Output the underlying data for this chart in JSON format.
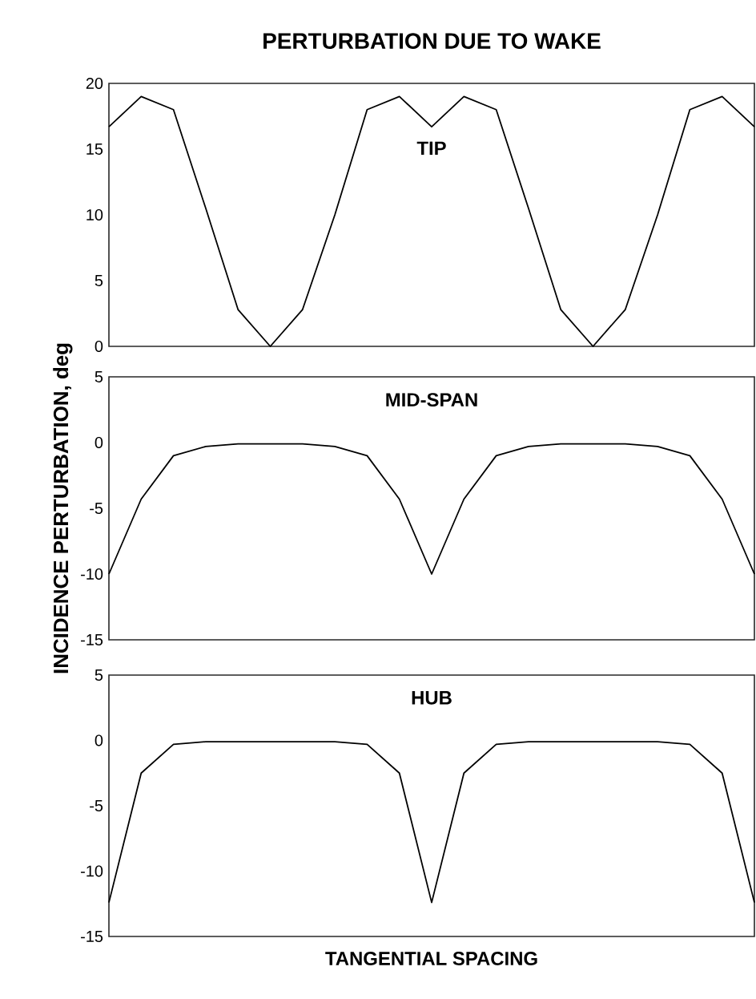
{
  "chart_data": [
    {
      "type": "line",
      "title": "PERTURBATION DUE TO WAKE",
      "annotations": [
        "TIP"
      ],
      "categories": [
        null,
        null,
        null,
        null,
        null,
        null,
        null,
        null,
        null,
        null,
        null,
        null,
        null,
        null,
        null,
        null,
        null,
        null,
        null,
        null,
        null
      ],
      "series": [
        {
          "color": "#000000",
          "values": [
            16.7,
            19,
            18,
            10.5,
            2.8,
            0,
            2.8,
            10,
            18,
            19,
            16.7,
            19,
            18,
            10.5,
            2.8,
            0,
            2.8,
            10,
            18,
            19,
            16.7
          ]
        }
      ],
      "ylim": [
        0,
        20
      ],
      "yticks": [
        {
          "value": 0,
          "label": "0"
        },
        {
          "value": 5,
          "label": "5"
        },
        {
          "value": 10,
          "label": "10"
        },
        {
          "value": 15,
          "label": "15"
        },
        {
          "value": 20,
          "label": "20"
        }
      ],
      "tick_labels": "y",
      "marker": "none",
      "line_style": "solid"
    },
    {
      "type": "line",
      "ylabel": "INCIDENCE PERTURBATION, deg",
      "annotations": [
        "MID-SPAN"
      ],
      "categories": [
        null,
        null,
        null,
        null,
        null,
        null,
        null,
        null,
        null,
        null,
        null,
        null,
        null,
        null,
        null,
        null,
        null,
        null,
        null,
        null,
        null
      ],
      "series": [
        {
          "color": "#000000",
          "values": [
            -10,
            -4.3,
            -1,
            -0.3,
            -0.1,
            -0.1,
            -0.1,
            -0.3,
            -1,
            -4.3,
            -10,
            -4.3,
            -1,
            -0.3,
            -0.1,
            -0.1,
            -0.1,
            -0.3,
            -1,
            -4.3,
            -10
          ]
        }
      ],
      "ylim": [
        -15,
        5
      ],
      "yticks": [
        {
          "value": -15,
          "label": "-15"
        },
        {
          "value": -10,
          "label": "-10"
        },
        {
          "value": -5,
          "label": "-5"
        },
        {
          "value": 0,
          "label": "0"
        },
        {
          "value": 5,
          "label": "5"
        }
      ],
      "tick_labels": "y",
      "marker": "none",
      "line_style": "solid"
    },
    {
      "type": "line",
      "xlabel": "TANGENTIAL SPACING",
      "annotations": [
        "HUB"
      ],
      "categories": [
        null,
        null,
        null,
        null,
        null,
        null,
        null,
        null,
        null,
        null,
        null,
        null,
        null,
        null,
        null,
        null,
        null,
        null,
        null,
        null,
        null
      ],
      "series": [
        {
          "color": "#000000",
          "values": [
            -12.4,
            -2.5,
            -0.3,
            -0.1,
            -0.1,
            -0.1,
            -0.1,
            -0.1,
            -0.3,
            -2.5,
            -12.4,
            -2.5,
            -0.3,
            -0.1,
            -0.1,
            -0.1,
            -0.1,
            -0.1,
            -0.3,
            -2.5,
            -12.4
          ]
        }
      ],
      "ylim": [
        -15,
        5
      ],
      "yticks": [
        {
          "value": -15,
          "label": "-15"
        },
        {
          "value": -10,
          "label": "-10"
        },
        {
          "value": -5,
          "label": "-5"
        },
        {
          "value": 0,
          "label": "0"
        },
        {
          "value": 5,
          "label": "5"
        }
      ],
      "tick_labels": "y",
      "marker": "none",
      "line_style": "solid"
    }
  ]
}
